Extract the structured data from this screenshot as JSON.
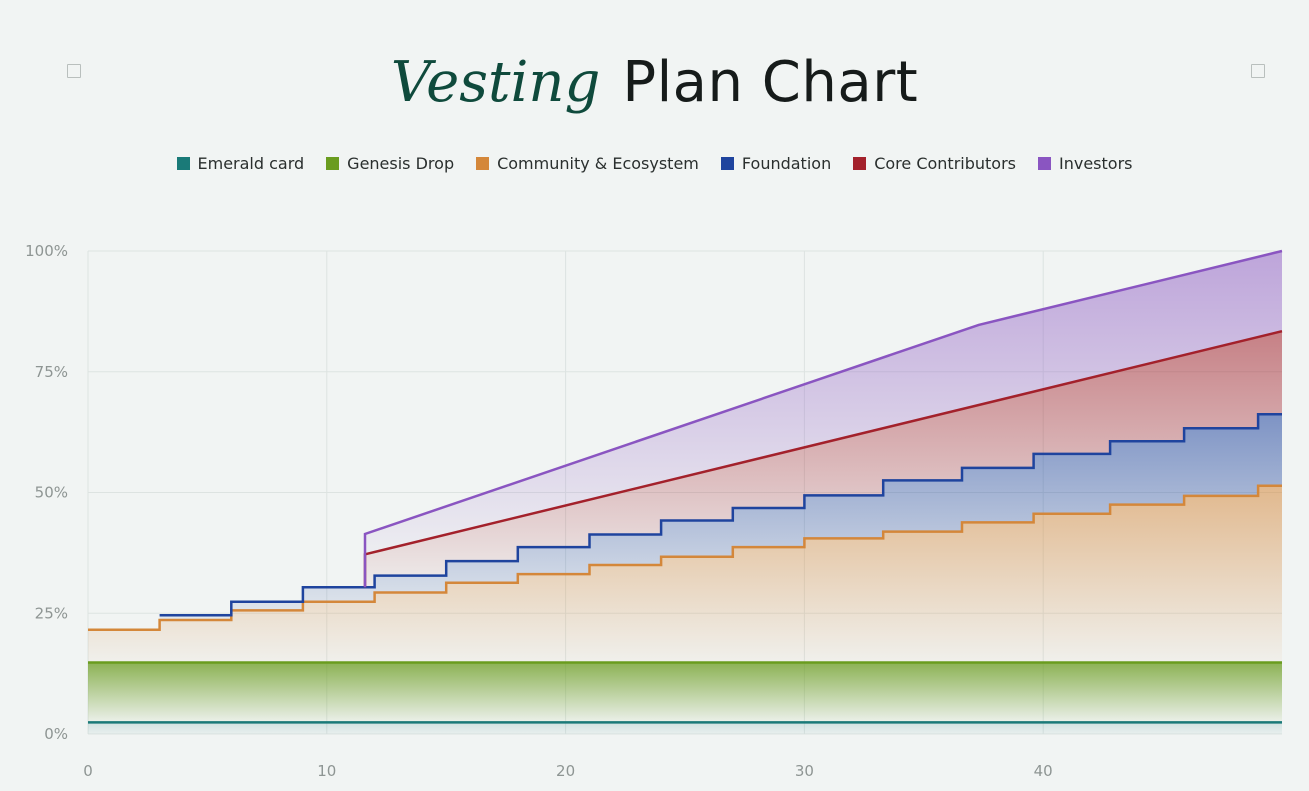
{
  "title": {
    "accent": "Vesting",
    "rest": "Plan Chart"
  },
  "colors": {
    "background": "#f1f4f3",
    "grid": "#dde3e1",
    "title_accent": "#0f4a3c"
  },
  "icons": {
    "top_left": "square-outline-icon",
    "top_right": "square-outline-icon"
  },
  "chart_data": {
    "type": "area",
    "stacked": true,
    "title": "Vesting Plan Chart",
    "xlabel": "",
    "ylabel": "",
    "xlim": [
      0,
      50
    ],
    "ylim": [
      0,
      100
    ],
    "x_ticks": [
      0,
      10,
      20,
      30,
      40
    ],
    "x_tick_labels": [
      "0",
      "10",
      "20",
      "30",
      "40"
    ],
    "y_ticks": [
      0,
      25,
      50,
      75,
      100
    ],
    "y_tick_labels": [
      "0%",
      "25%",
      "50%",
      "75%",
      "100%"
    ],
    "grid": true,
    "legend": "top-center",
    "series": [
      {
        "name": "Emerald card",
        "color": "#1a7a78",
        "step": false,
        "points": [
          [
            0,
            2.4
          ],
          [
            50,
            2.4
          ]
        ]
      },
      {
        "name": "Genesis Drop",
        "color": "#6a9c1f",
        "step": false,
        "points": [
          [
            0,
            14.8
          ],
          [
            50,
            14.8
          ]
        ]
      },
      {
        "name": "Community & Ecosystem",
        "color": "#d4873a",
        "step": true,
        "points": [
          [
            0,
            21.6
          ],
          [
            3,
            23.6
          ],
          [
            6,
            25.6
          ],
          [
            9,
            27.4
          ],
          [
            12,
            29.3
          ],
          [
            15,
            31.3
          ],
          [
            18,
            33.1
          ],
          [
            21,
            35.0
          ],
          [
            24,
            36.7
          ],
          [
            27,
            38.7
          ],
          [
            30,
            40.5
          ],
          [
            33.3,
            41.9
          ],
          [
            36.6,
            43.8
          ],
          [
            39.6,
            45.6
          ],
          [
            42.8,
            47.5
          ],
          [
            45.9,
            49.3
          ],
          [
            49,
            51.4
          ],
          [
            50,
            51.4
          ]
        ]
      },
      {
        "name": "Foundation",
        "color": "#1f449e",
        "step": true,
        "points": [
          [
            3,
            24.6
          ],
          [
            6,
            27.4
          ],
          [
            9,
            30.4
          ],
          [
            12,
            32.8
          ],
          [
            15,
            35.8
          ],
          [
            18,
            38.7
          ],
          [
            21,
            41.3
          ],
          [
            24,
            44.2
          ],
          [
            27,
            46.8
          ],
          [
            30,
            49.4
          ],
          [
            33.3,
            52.5
          ],
          [
            36.6,
            55.1
          ],
          [
            39.6,
            58.0
          ],
          [
            42.8,
            60.6
          ],
          [
            45.9,
            63.3
          ],
          [
            49,
            66.2
          ],
          [
            50,
            66.2
          ]
        ]
      },
      {
        "name": "Core Contributors",
        "color": "#a3212b",
        "step": false,
        "points": [
          [
            11.6,
            37.2
          ],
          [
            50,
            83.4
          ]
        ]
      },
      {
        "name": "Investors",
        "color": "#8a55c1",
        "step": false,
        "points": [
          [
            11.6,
            41.4
          ],
          [
            37.3,
            84.7
          ],
          [
            50,
            100
          ]
        ]
      }
    ]
  }
}
